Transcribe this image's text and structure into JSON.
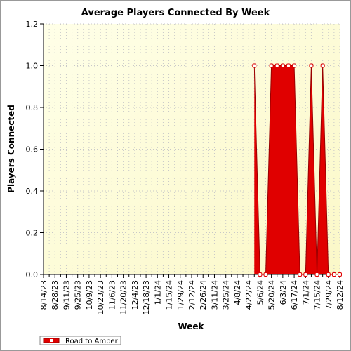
{
  "chart_data": {
    "type": "area",
    "title": "Average Players Connected By Week",
    "x_label": "Week",
    "y_label": "Players Connected",
    "categories": [
      "8/14/23",
      null,
      "8/28/23",
      null,
      "9/11/23",
      null,
      "9/25/23",
      null,
      "10/9/23",
      null,
      "10/23/23",
      null,
      "11/6/23",
      null,
      "11/20/23",
      null,
      "12/4/23",
      null,
      "12/18/23",
      null,
      "1/1/24",
      null,
      "1/15/24",
      null,
      "1/29/24",
      null,
      "2/12/24",
      null,
      "2/26/24",
      null,
      "3/11/24",
      null,
      "3/25/24",
      null,
      "4/8/24",
      null,
      "4/22/24",
      null,
      "5/6/24",
      null,
      "5/20/24",
      null,
      "6/3/24",
      null,
      "6/17/24",
      null,
      "7/1/24",
      null,
      "7/15/24",
      null,
      "7/29/24",
      null,
      "8/12/24"
    ],
    "series": [
      {
        "name": "Road to Amber",
        "color": "#e00000",
        "values": [
          null,
          null,
          null,
          null,
          null,
          null,
          null,
          null,
          null,
          null,
          null,
          null,
          null,
          null,
          null,
          null,
          null,
          null,
          null,
          null,
          null,
          null,
          null,
          null,
          null,
          null,
          null,
          null,
          null,
          null,
          null,
          null,
          null,
          null,
          null,
          null,
          null,
          1,
          0,
          0,
          1,
          1,
          1,
          1,
          1,
          0,
          0,
          1,
          0,
          1,
          0,
          0,
          0
        ]
      }
    ],
    "ylim": [
      0,
      1.2
    ],
    "yticks": [
      {
        "value": 0,
        "label": "0.0"
      },
      {
        "value": 0.2,
        "label": "0.2"
      },
      {
        "value": 0.4,
        "label": "0.4"
      },
      {
        "value": 0.6,
        "label": "0.6"
      },
      {
        "value": 0.8,
        "label": "0.8"
      },
      {
        "value": 1,
        "label": "1.0"
      },
      {
        "value": 1.2,
        "label": "1.2"
      }
    ],
    "grid": true
  }
}
